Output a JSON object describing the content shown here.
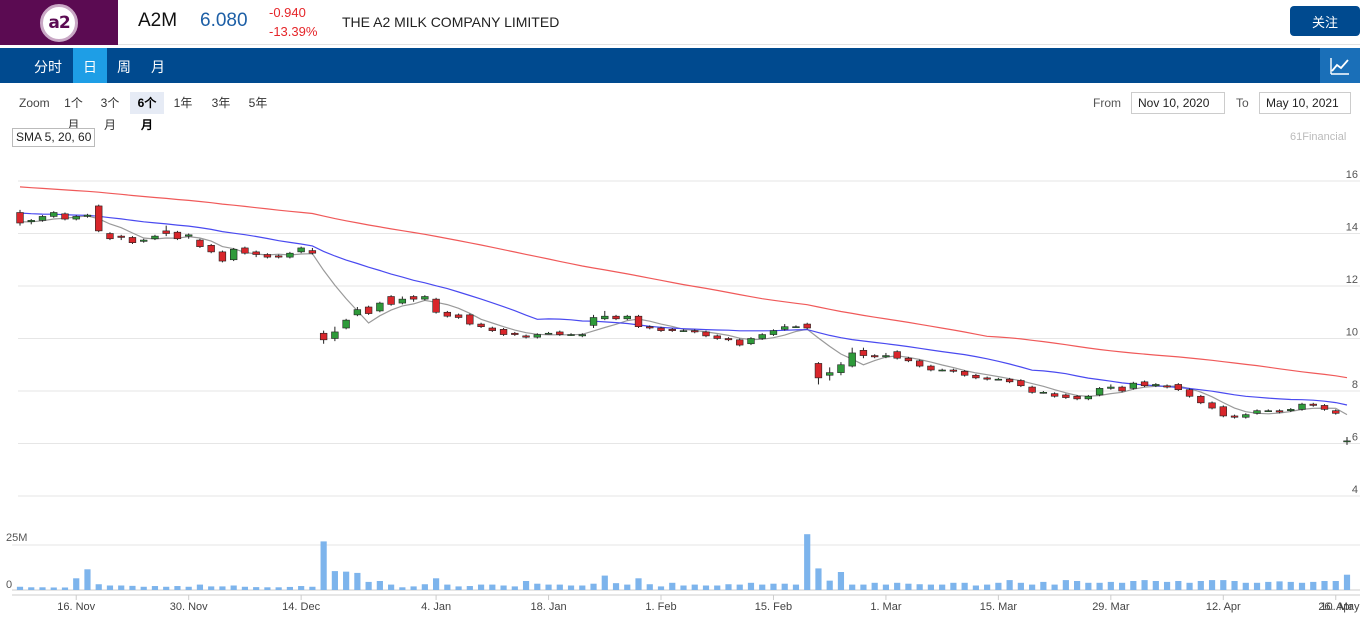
{
  "header": {
    "logo_text": "a2",
    "ticker": "A2M",
    "price": "6.080",
    "change": "-0.940",
    "change_pct": "-13.39%",
    "company": "THE A2 MILK COMPANY LIMITED",
    "follow_label": "关注"
  },
  "period_tabs": [
    "分时",
    "日",
    "周",
    "月"
  ],
  "active_period": "日",
  "zoom": {
    "label": "Zoom",
    "options": [
      "1个月",
      "3个月",
      "6个月",
      "1年",
      "3年",
      "5年"
    ],
    "active": "6个月",
    "from_label": "From",
    "from_value": "Nov 10, 2020",
    "to_label": "To",
    "to_value": "May 10, 2021"
  },
  "indicator_label": "SMA 5, 20, 60",
  "credit": "61Financial",
  "colors": {
    "brand": "#5b0b52",
    "nav": "#004a8f",
    "nav_active": "#1e9ee6",
    "up": "#2e9a3a",
    "down": "#d9262b",
    "sma5": "#9a9a9a",
    "sma20": "#4a4af0",
    "sma60": "#f05a5a",
    "volume": "#7db4ec"
  },
  "chart_data": {
    "type": "candlestick",
    "price_axis": {
      "ticks": [
        4,
        6,
        8,
        10,
        12,
        14,
        16
      ],
      "range": [
        4,
        16
      ]
    },
    "volume_axis": {
      "ticks": [
        "0",
        "25M"
      ]
    },
    "x_labels": [
      "16. Nov",
      "30. Nov",
      "14. Dec",
      "4. Jan",
      "18. Jan",
      "1. Feb",
      "15. Feb",
      "1. Mar",
      "15. Mar",
      "29. Mar",
      "12. Apr",
      "26. Apr",
      "10. May"
    ],
    "x_label_index": [
      5,
      15,
      25,
      37,
      47,
      57,
      67,
      77,
      87,
      97,
      107,
      117,
      127
    ],
    "candles": [
      [
        14.8,
        14.4,
        14.9,
        14.3
      ],
      [
        14.45,
        14.5,
        14.55,
        14.35
      ],
      [
        14.5,
        14.65,
        14.7,
        14.45
      ],
      [
        14.65,
        14.8,
        14.85,
        14.6
      ],
      [
        14.75,
        14.55,
        14.8,
        14.5
      ],
      [
        14.55,
        14.65,
        14.7,
        14.5
      ],
      [
        14.65,
        14.7,
        14.75,
        14.6
      ],
      [
        15.05,
        14.1,
        15.1,
        14.05
      ],
      [
        14.0,
        13.8,
        14.05,
        13.75
      ],
      [
        13.9,
        13.85,
        13.95,
        13.75
      ],
      [
        13.85,
        13.65,
        13.9,
        13.6
      ],
      [
        13.7,
        13.75,
        13.8,
        13.65
      ],
      [
        13.8,
        13.9,
        13.95,
        13.75
      ],
      [
        14.1,
        14.0,
        14.3,
        13.9
      ],
      [
        14.05,
        13.8,
        14.1,
        13.75
      ],
      [
        13.9,
        13.95,
        14.0,
        13.8
      ],
      [
        13.75,
        13.5,
        13.8,
        13.45
      ],
      [
        13.55,
        13.3,
        13.6,
        13.25
      ],
      [
        13.3,
        12.95,
        13.35,
        12.9
      ],
      [
        13.0,
        13.4,
        13.45,
        12.95
      ],
      [
        13.45,
        13.25,
        13.5,
        13.2
      ],
      [
        13.3,
        13.2,
        13.35,
        13.1
      ],
      [
        13.2,
        13.1,
        13.25,
        13.05
      ],
      [
        13.15,
        13.1,
        13.2,
        13.05
      ],
      [
        13.1,
        13.25,
        13.3,
        13.05
      ],
      [
        13.3,
        13.45,
        13.5,
        13.25
      ],
      [
        13.35,
        13.25,
        13.45,
        13.2
      ],
      [
        10.2,
        9.95,
        10.3,
        9.8
      ],
      [
        10.0,
        10.25,
        10.45,
        9.9
      ],
      [
        10.4,
        10.7,
        10.75,
        10.35
      ],
      [
        10.9,
        11.1,
        11.2,
        10.85
      ],
      [
        11.2,
        10.95,
        11.25,
        10.9
      ],
      [
        11.05,
        11.35,
        11.4,
        11.0
      ],
      [
        11.6,
        11.3,
        11.65,
        11.25
      ],
      [
        11.35,
        11.5,
        11.6,
        11.3
      ],
      [
        11.6,
        11.5,
        11.65,
        11.4
      ],
      [
        11.5,
        11.6,
        11.65,
        11.45
      ],
      [
        11.5,
        11.0,
        11.55,
        10.95
      ],
      [
        11.0,
        10.85,
        11.05,
        10.8
      ],
      [
        10.9,
        10.8,
        10.95,
        10.75
      ],
      [
        10.9,
        10.55,
        10.95,
        10.5
      ],
      [
        10.55,
        10.45,
        10.6,
        10.4
      ],
      [
        10.4,
        10.3,
        10.45,
        10.25
      ],
      [
        10.35,
        10.15,
        10.4,
        10.1
      ],
      [
        10.2,
        10.15,
        10.25,
        10.1
      ],
      [
        10.1,
        10.05,
        10.15,
        10.0
      ],
      [
        10.05,
        10.15,
        10.2,
        10.0
      ],
      [
        10.2,
        10.2,
        10.25,
        10.15
      ],
      [
        10.25,
        10.15,
        10.3,
        10.1
      ],
      [
        10.15,
        10.15,
        10.2,
        10.1
      ],
      [
        10.1,
        10.15,
        10.2,
        10.05
      ],
      [
        10.5,
        10.8,
        10.9,
        10.4
      ],
      [
        10.75,
        10.85,
        11.05,
        10.7
      ],
      [
        10.85,
        10.75,
        10.9,
        10.7
      ],
      [
        10.75,
        10.85,
        10.9,
        10.7
      ],
      [
        10.85,
        10.45,
        10.9,
        10.4
      ],
      [
        10.45,
        10.4,
        10.5,
        10.35
      ],
      [
        10.4,
        10.3,
        10.45,
        10.25
      ],
      [
        10.35,
        10.3,
        10.4,
        10.25
      ],
      [
        10.3,
        10.3,
        10.35,
        10.25
      ],
      [
        10.3,
        10.25,
        10.35,
        10.2
      ],
      [
        10.25,
        10.1,
        10.3,
        10.05
      ],
      [
        10.1,
        10.0,
        10.15,
        9.95
      ],
      [
        10.0,
        9.95,
        10.05,
        9.9
      ],
      [
        9.95,
        9.75,
        10.0,
        9.7
      ],
      [
        9.8,
        10.0,
        10.05,
        9.75
      ],
      [
        10.0,
        10.15,
        10.2,
        9.95
      ],
      [
        10.15,
        10.3,
        10.35,
        10.1
      ],
      [
        10.35,
        10.45,
        10.55,
        10.3
      ],
      [
        10.45,
        10.45,
        10.5,
        10.4
      ],
      [
        10.55,
        10.4,
        10.6,
        10.35
      ],
      [
        9.05,
        8.5,
        9.1,
        8.25
      ],
      [
        8.6,
        8.7,
        8.9,
        8.4
      ],
      [
        8.7,
        9.0,
        9.1,
        8.6
      ],
      [
        8.95,
        9.45,
        9.65,
        8.9
      ],
      [
        9.55,
        9.35,
        9.65,
        9.25
      ],
      [
        9.35,
        9.3,
        9.4,
        9.25
      ],
      [
        9.3,
        9.35,
        9.45,
        9.25
      ],
      [
        9.5,
        9.25,
        9.55,
        9.2
      ],
      [
        9.25,
        9.15,
        9.3,
        9.1
      ],
      [
        9.15,
        8.95,
        9.2,
        8.9
      ],
      [
        8.95,
        8.8,
        9.0,
        8.75
      ],
      [
        8.8,
        8.8,
        8.85,
        8.75
      ],
      [
        8.8,
        8.75,
        8.85,
        8.7
      ],
      [
        8.75,
        8.6,
        8.8,
        8.55
      ],
      [
        8.6,
        8.5,
        8.65,
        8.45
      ],
      [
        8.5,
        8.45,
        8.55,
        8.4
      ],
      [
        8.45,
        8.45,
        8.5,
        8.4
      ],
      [
        8.45,
        8.35,
        8.5,
        8.3
      ],
      [
        8.4,
        8.2,
        8.45,
        8.15
      ],
      [
        8.15,
        7.95,
        8.2,
        7.9
      ],
      [
        7.95,
        7.95,
        8.0,
        7.9
      ],
      [
        7.9,
        7.8,
        7.95,
        7.75
      ],
      [
        7.85,
        7.75,
        7.9,
        7.7
      ],
      [
        7.8,
        7.7,
        7.85,
        7.65
      ],
      [
        7.7,
        7.8,
        7.85,
        7.65
      ],
      [
        7.85,
        8.1,
        8.15,
        7.8
      ],
      [
        8.1,
        8.15,
        8.25,
        8.05
      ],
      [
        8.15,
        8.0,
        8.2,
        7.95
      ],
      [
        8.1,
        8.3,
        8.35,
        8.05
      ],
      [
        8.35,
        8.2,
        8.4,
        8.15
      ],
      [
        8.2,
        8.25,
        8.3,
        8.15
      ],
      [
        8.2,
        8.15,
        8.25,
        8.1
      ],
      [
        8.25,
        8.05,
        8.3,
        8.0
      ],
      [
        8.05,
        7.8,
        8.1,
        7.75
      ],
      [
        7.8,
        7.55,
        7.85,
        7.5
      ],
      [
        7.55,
        7.35,
        7.6,
        7.3
      ],
      [
        7.4,
        7.05,
        7.45,
        7.0
      ],
      [
        7.05,
        7.0,
        7.1,
        6.95
      ],
      [
        7.0,
        7.1,
        7.15,
        6.95
      ],
      [
        7.15,
        7.25,
        7.3,
        7.1
      ],
      [
        7.25,
        7.25,
        7.3,
        7.2
      ],
      [
        7.25,
        7.2,
        7.3,
        7.15
      ],
      [
        7.25,
        7.3,
        7.35,
        7.2
      ],
      [
        7.3,
        7.5,
        7.55,
        7.25
      ],
      [
        7.5,
        7.45,
        7.55,
        7.4
      ],
      [
        7.45,
        7.3,
        7.5,
        7.25
      ],
      [
        7.25,
        7.15,
        7.3,
        7.1
      ],
      [
        6.1,
        6.1,
        6.25,
        5.95
      ]
    ],
    "volumes": [
      1.8,
      1.5,
      1.5,
      1.4,
      1.4,
      6.5,
      11.5,
      3.2,
      2.5,
      2.5,
      2.3,
      1.8,
      2.2,
      1.8,
      2.2,
      1.8,
      3.0,
      2.0,
      2.0,
      2.5,
      1.8,
      1.6,
      1.5,
      1.5,
      1.7,
      2.2,
      1.8,
      27.0,
      10.5,
      10.2,
      9.5,
      4.5,
      5.0,
      3.0,
      1.5,
      2.0,
      3.2,
      6.5,
      3.0,
      2.0,
      2.2,
      3.0,
      3.0,
      2.5,
      2.0,
      5.0,
      3.5,
      3.0,
      3.0,
      2.5,
      2.5,
      3.5,
      8.0,
      3.8,
      3.0,
      6.5,
      3.2,
      2.0,
      4.0,
      2.5,
      3.0,
      2.5,
      2.5,
      3.2,
      3.0,
      4.0,
      3.0,
      3.5,
      3.5,
      3.0,
      31.0,
      12.0,
      5.2,
      10.0,
      3.0,
      3.0,
      4.0,
      3.0,
      4.0,
      3.5,
      3.2,
      3.0,
      3.0,
      4.0,
      4.0,
      2.5,
      3.0,
      4.0,
      5.5,
      4.0,
      3.0,
      4.5,
      3.0,
      5.5,
      5.0,
      4.0,
      4.0,
      4.5,
      4.0,
      5.0,
      5.5,
      5.0,
      4.5,
      5.0,
      4.0,
      5.0,
      5.5,
      5.5,
      5.0,
      4.0,
      4.0,
      4.5,
      4.8,
      4.5,
      4.0,
      4.5,
      5.0,
      5.0,
      8.5
    ]
  }
}
